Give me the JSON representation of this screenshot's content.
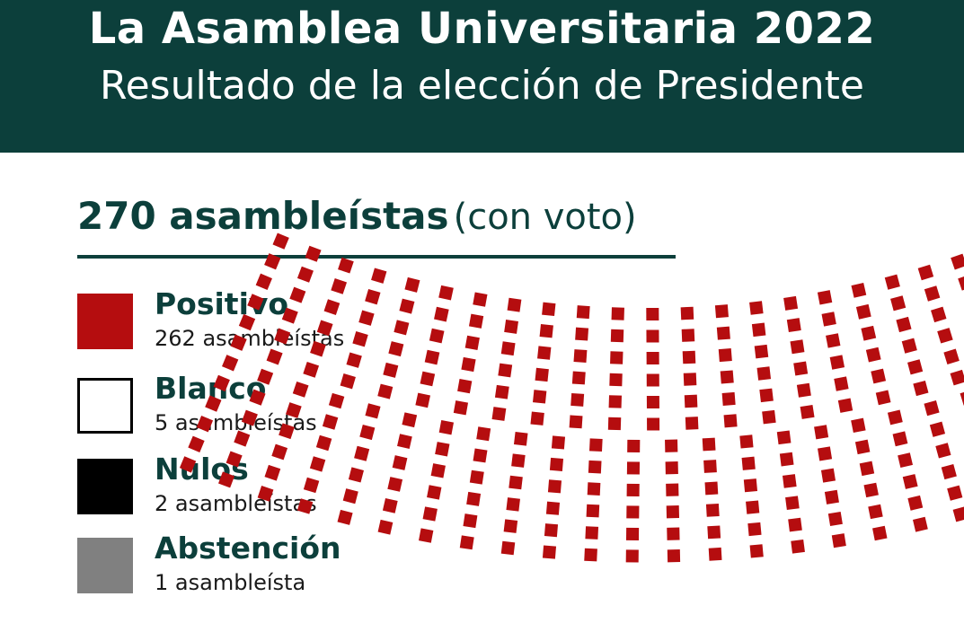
{
  "header": {
    "title": "La Asamblea Universitaria 2022",
    "subtitle": "Resultado de la elección de Presidente"
  },
  "total": {
    "count_label": "270 asambleístas",
    "qualifier": "(con voto)"
  },
  "colors": {
    "header_bg": "#0c3f3b",
    "positivo": "#b50d0f",
    "blanco": "#ffffff",
    "nulos": "#000000",
    "abstencion": "#808080"
  },
  "legend": [
    {
      "name": "Positivo",
      "count": "262 asambleístas",
      "color": "#b50d0f"
    },
    {
      "name": "Blanco",
      "count": "5 asambleístas",
      "color": "#ffffff"
    },
    {
      "name": "Nulos",
      "count": "2 asambleístas",
      "color": "#000000"
    },
    {
      "name": "Abstención",
      "count": "1 asambleísta",
      "color": "#808080"
    }
  ],
  "chart_data": {
    "type": "parliament",
    "total_seats": 270,
    "series": [
      {
        "name": "Positivo",
        "values": [
          262
        ]
      },
      {
        "name": "Blanco",
        "values": [
          5
        ]
      },
      {
        "name": "Nulos",
        "values": [
          2
        ]
      },
      {
        "name": "Abstención",
        "values": [
          1
        ]
      }
    ]
  }
}
